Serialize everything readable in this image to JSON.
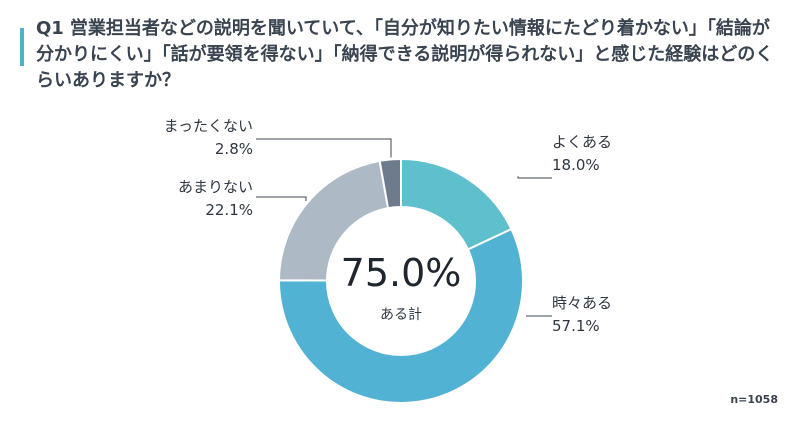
{
  "question": {
    "number": "Q1",
    "text": "営業担当者などの説明を聞いていて、「自分が知りたい情報にたどり着かない」「結論が分かりにくい」「話が要領を得ない」「納得できる説明が得られない」と感じた経験はどのくらいありますか？"
  },
  "chart_data": {
    "type": "pie",
    "donut": true,
    "categories": [
      "よくある",
      "時々ある",
      "あまりない",
      "まったくない"
    ],
    "values": [
      18.0,
      57.1,
      22.1,
      2.8
    ],
    "value_labels": [
      "18.0%",
      "57.1%",
      "22.1%",
      "2.8%"
    ],
    "colors": [
      "#5ebfcd",
      "#52b2d4",
      "#aeb9c6",
      "#6d7b8d"
    ],
    "center": {
      "value": "75.0%",
      "label": "ある計"
    },
    "sample_size": "n=1058"
  }
}
